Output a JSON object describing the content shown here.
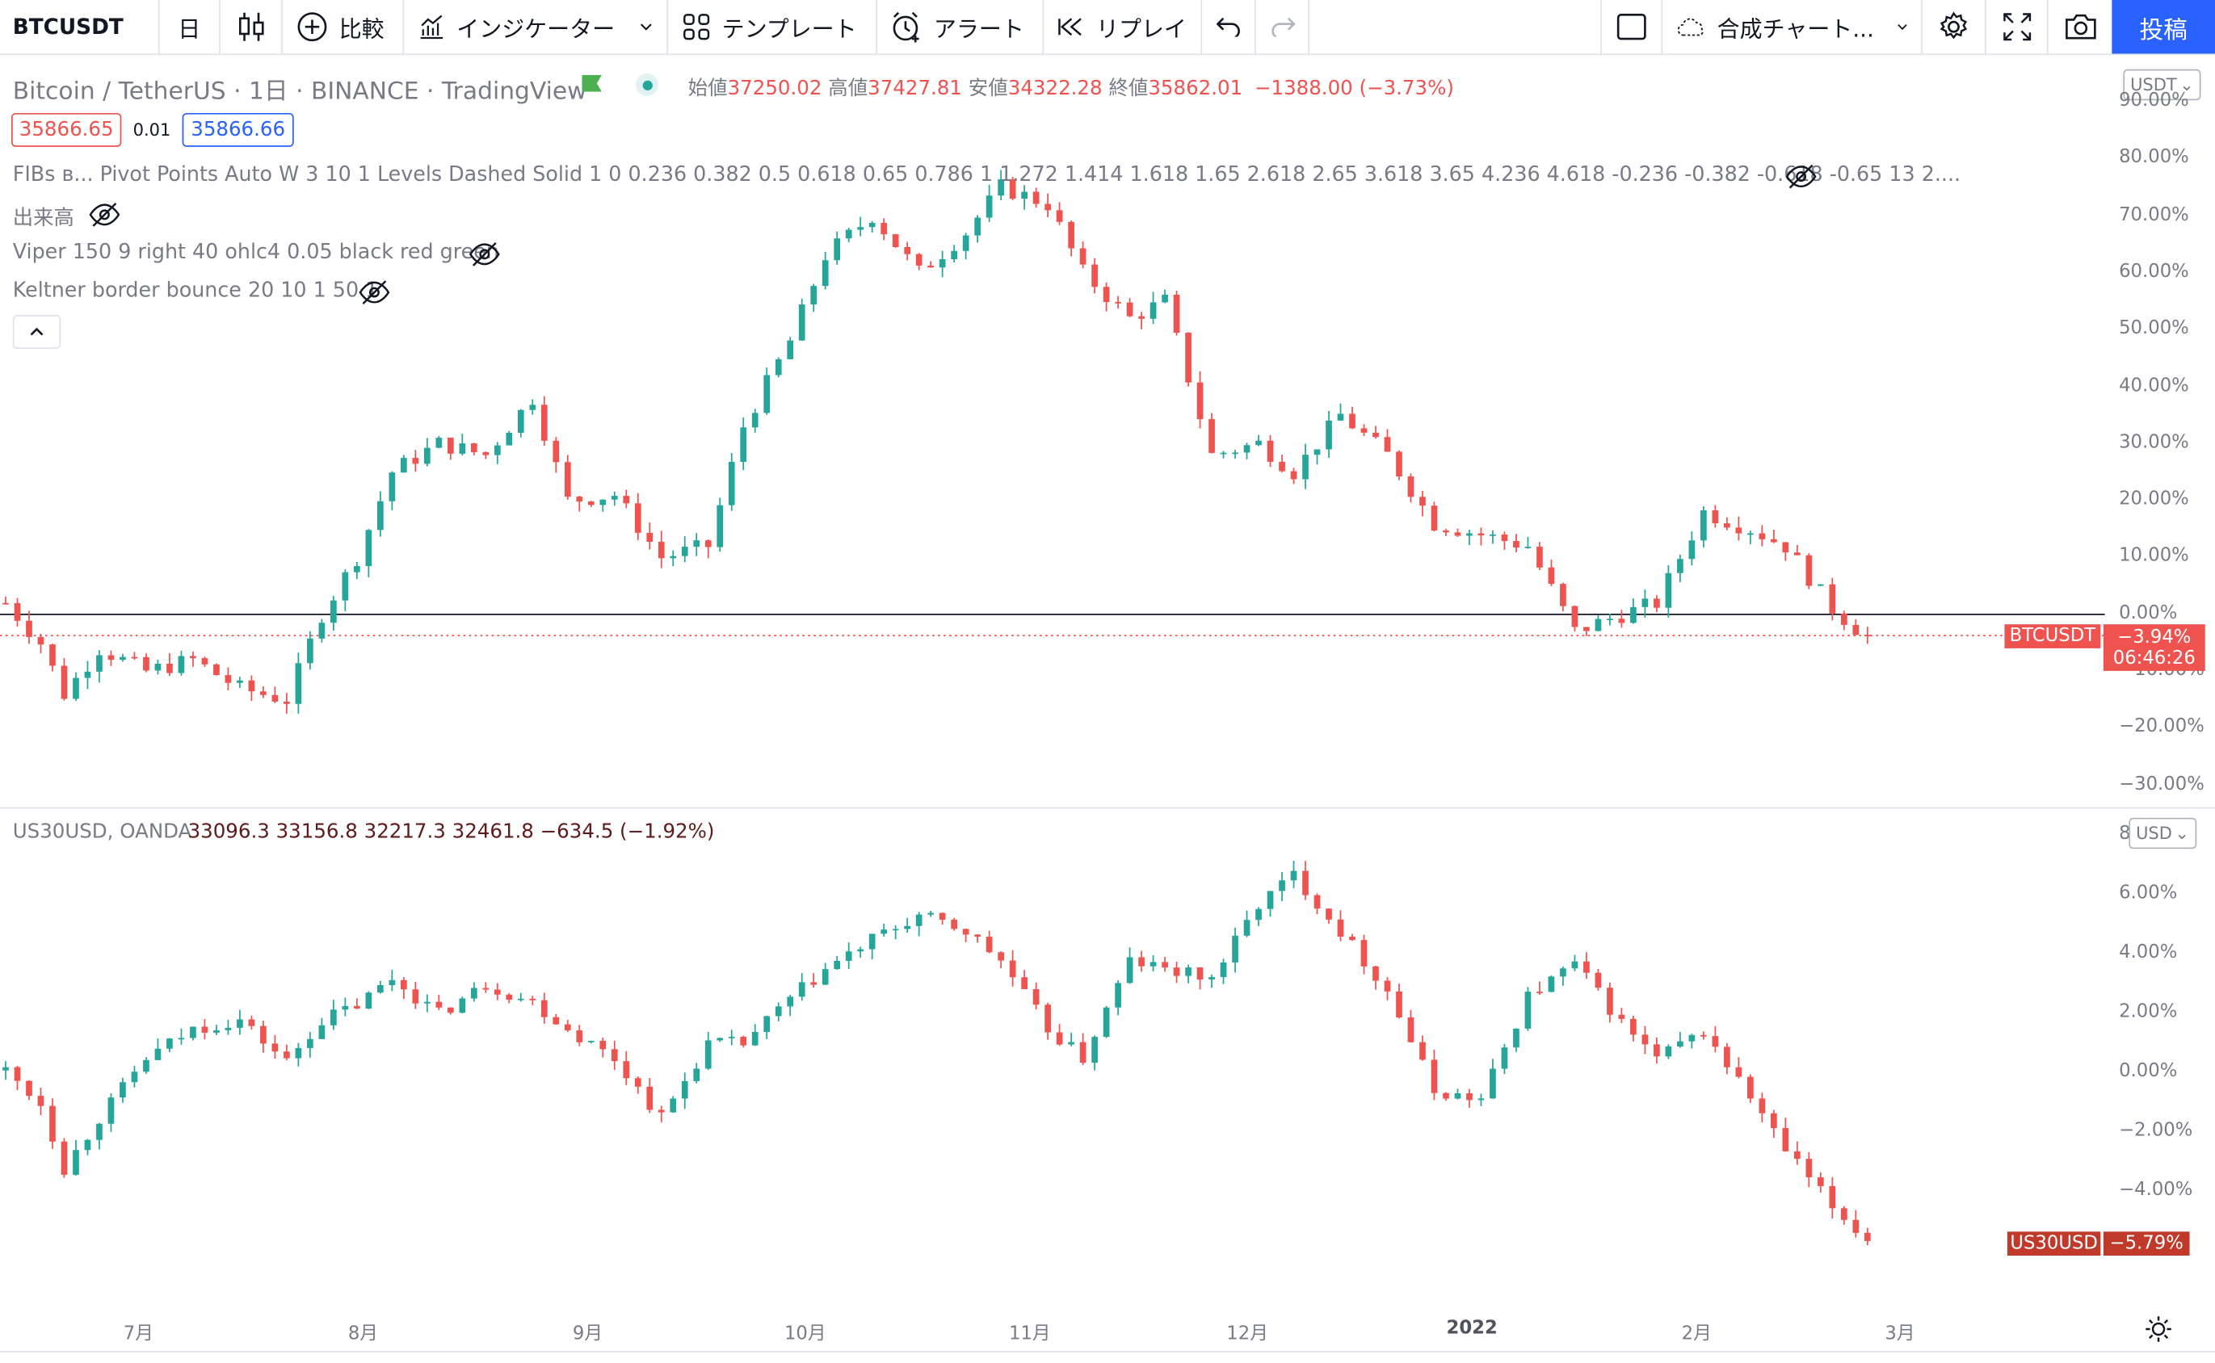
{
  "toolbar": {
    "symbol": "BTCUSDT",
    "interval": "日",
    "compare": "比較",
    "indicators": "インジケーター",
    "templates": "テンプレート",
    "alert": "アラート",
    "replay": "リプレイ",
    "layout": "合成チャート...",
    "post": "投稿"
  },
  "main": {
    "title": "Bitcoin / TetherUS · 1日 · BINANCE · TradingView",
    "o_label": "始値",
    "o": "37250.02",
    "h_label": "高値",
    "h": "37427.81",
    "l_label": "安値",
    "l": "34322.28",
    "c_label": "終値",
    "c": "35862.01",
    "change": "−1388.00 (−3.73%)",
    "sell": "35866.65",
    "spread": "0.01",
    "buy": "35866.66",
    "currency": "USDT",
    "indicators": [
      "FIBs в...  Pivot Points Auto W 3 10 1 Levels Dashed Solid 1 0 0.236 0.382 0.5 0.618 0.65 0.786 1 1.272 1.414 1.618 1.65 2.618 2.65 3.618 3.65 4.236 4.618 -0.236 -0.382 -0.618 -0.65 13 2....",
      "出来高",
      "Viper 150 9 right 40 ohlc4 0.05 black red green",
      "Keltner border bounce 20 10 1 50 1"
    ],
    "axis": [
      "90.00%",
      "80.00%",
      "70.00%",
      "60.00%",
      "50.00%",
      "40.00%",
      "30.00%",
      "20.00%",
      "10.00%",
      "0.00%",
      "−10.00%",
      "−20.00%",
      "−30.00%"
    ],
    "tag_symbol": "BTCUSDT",
    "tag_value": "−3.94%",
    "tag_time": "06:46:26"
  },
  "sub": {
    "title": "US30USD, OANDA",
    "ohlc": "33096.3  33156.8  32217.3  32461.8  −634.5 (−1.92%)",
    "currency": "USD",
    "axis_top": "8",
    "axis": [
      "6.00%",
      "4.00%",
      "2.00%",
      "0.00%",
      "−2.00%",
      "−4.00%"
    ],
    "tag_symbol": "US30USD",
    "tag_value": "−5.79%"
  },
  "xaxis": [
    "7月",
    "8月",
    "9月",
    "10月",
    "11月",
    "12月",
    "2022",
    "2月",
    "3月"
  ],
  "colors": {
    "up": "#26a69a",
    "down": "#ef5350",
    "accent": "#2962ff"
  },
  "chart_data": [
    {
      "type": "candlestick",
      "title": "Bitcoin / TetherUS · 1日 · BINANCE",
      "ylabel": "%",
      "ylim": [
        -35,
        90
      ],
      "x": [
        "7月",
        "8月",
        "9月",
        "10月",
        "11月",
        "12月",
        "2022",
        "2月",
        "3月"
      ],
      "series": [
        {
          "name": "BTCUSDT",
          "path": [
            [
              0,
              2
            ],
            [
              3,
              -5
            ],
            [
              5,
              -14
            ],
            [
              8,
              -6
            ],
            [
              12,
              -10
            ],
            [
              16,
              -8
            ],
            [
              20,
              -13
            ],
            [
              24,
              -15
            ],
            [
              27,
              0
            ],
            [
              30,
              10
            ],
            [
              33,
              25
            ],
            [
              37,
              30
            ],
            [
              41,
              28
            ],
            [
              45,
              38
            ],
            [
              48,
              20
            ],
            [
              52,
              21
            ],
            [
              56,
              10
            ],
            [
              60,
              12
            ],
            [
              63,
              33
            ],
            [
              67,
              48
            ],
            [
              70,
              63
            ],
            [
              74,
              70
            ],
            [
              78,
              60
            ],
            [
              82,
              67
            ],
            [
              85,
              75
            ],
            [
              89,
              72
            ],
            [
              92,
              60
            ],
            [
              96,
              52
            ],
            [
              99,
              55
            ],
            [
              103,
              28
            ],
            [
              107,
              30
            ],
            [
              110,
              25
            ],
            [
              114,
              35
            ],
            [
              118,
              28
            ],
            [
              122,
              16
            ],
            [
              126,
              14
            ],
            [
              130,
              12
            ],
            [
              134,
              -3
            ],
            [
              138,
              0
            ],
            [
              141,
              2
            ],
            [
              145,
              18
            ],
            [
              149,
              15
            ],
            [
              152,
              12
            ],
            [
              156,
              1
            ],
            [
              159,
              -4
            ]
          ]
        }
      ]
    },
    {
      "type": "candlestick",
      "title": "US30USD, OANDA",
      "ylabel": "%",
      "ylim": [
        -6,
        7
      ],
      "x": [
        "7月",
        "8月",
        "9月",
        "10月",
        "11月",
        "12月",
        "2022",
        "2月",
        "3月"
      ],
      "series": [
        {
          "name": "US30USD",
          "path": [
            [
              0,
              0.1
            ],
            [
              3,
              -1.0
            ],
            [
              5,
              -3.2
            ],
            [
              8,
              -1.5
            ],
            [
              12,
              0.5
            ],
            [
              16,
              1.5
            ],
            [
              20,
              1.8
            ],
            [
              24,
              0.4
            ],
            [
              27,
              1.8
            ],
            [
              30,
              2.3
            ],
            [
              33,
              3.2
            ],
            [
              37,
              2.0
            ],
            [
              41,
              3.0
            ],
            [
              45,
              2.4
            ],
            [
              48,
              1.5
            ],
            [
              52,
              0.5
            ],
            [
              56,
              -1.5
            ],
            [
              60,
              1.0
            ],
            [
              63,
              1.0
            ],
            [
              67,
              2.5
            ],
            [
              70,
              3.5
            ],
            [
              74,
              4.5
            ],
            [
              78,
              5.3
            ],
            [
              82,
              4.8
            ],
            [
              85,
              3.8
            ],
            [
              89,
              1.5
            ],
            [
              92,
              0.5
            ],
            [
              96,
              3.8
            ],
            [
              99,
              3.5
            ],
            [
              103,
              3.2
            ],
            [
              107,
              5.7
            ],
            [
              110,
              6.7
            ],
            [
              114,
              4.8
            ],
            [
              118,
              2.8
            ],
            [
              122,
              -0.6
            ],
            [
              126,
              -0.9
            ],
            [
              130,
              2.6
            ],
            [
              134,
              3.7
            ],
            [
              138,
              1.7
            ],
            [
              141,
              0.5
            ],
            [
              145,
              1.4
            ],
            [
              149,
              -0.8
            ],
            [
              152,
              -2.6
            ],
            [
              156,
              -4.5
            ],
            [
              159,
              -5.6
            ]
          ]
        }
      ]
    }
  ]
}
